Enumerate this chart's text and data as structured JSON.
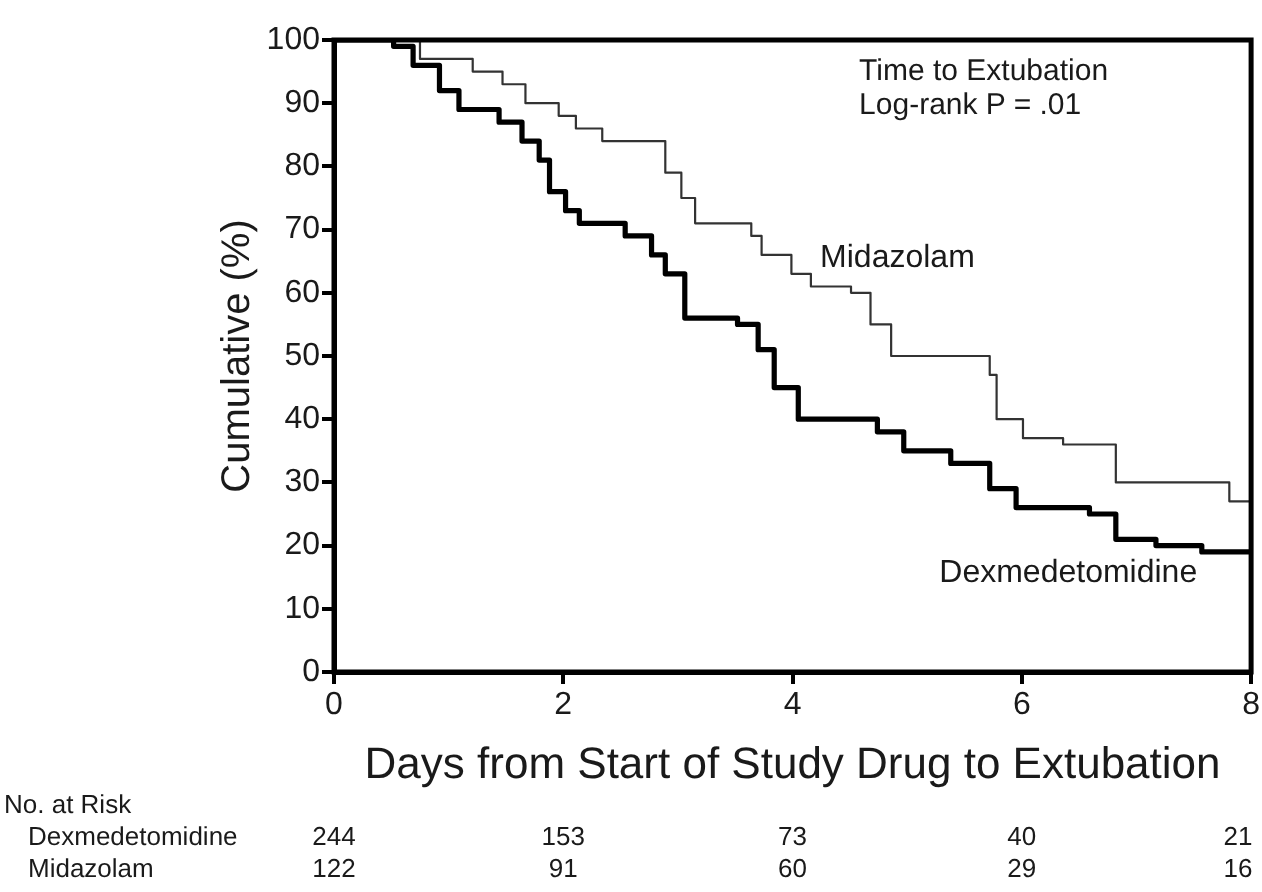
{
  "chart_data": {
    "type": "step",
    "xlabel": "Days from Start of Study Drug to Extubation",
    "ylabel": "Cumulative (%)",
    "xlim": [
      0,
      8
    ],
    "ylim": [
      0,
      100
    ],
    "xticks": [
      0,
      2,
      4,
      6,
      8
    ],
    "yticks": [
      0,
      10,
      20,
      30,
      40,
      50,
      60,
      70,
      80,
      90,
      100
    ],
    "grid": false,
    "legend": false,
    "series": [
      {
        "name": "Dexmedetomidine",
        "color": "#000000",
        "x": [
          0,
          0.52,
          0.69,
          0.92,
          1.09,
          1.44,
          1.64,
          1.79,
          1.88,
          2.02,
          2.14,
          2.54,
          2.77,
          2.89,
          3.06,
          3.52,
          3.7,
          3.84,
          4.05,
          4.74,
          4.97,
          5.38,
          5.72,
          5.95,
          6.59,
          6.82,
          7.17,
          7.57,
          8
        ],
        "values": [
          100,
          99,
          96,
          92,
          89,
          87,
          84,
          81,
          76,
          73,
          71,
          69,
          66,
          63,
          56,
          55,
          51,
          45,
          40,
          38,
          35,
          33,
          29,
          26,
          25,
          21,
          20,
          19,
          19
        ]
      },
      {
        "name": "Midazolam",
        "color": "#333333",
        "x": [
          0,
          0.75,
          1.21,
          1.47,
          1.67,
          1.96,
          2.11,
          2.34,
          2.74,
          2.89,
          3.03,
          3.15,
          3.64,
          3.73,
          3.99,
          4.16,
          4.51,
          4.68,
          4.86,
          5.72,
          5.78,
          6.01,
          6.36,
          6.82,
          7.81,
          8
        ],
        "values": [
          100,
          97,
          95,
          93,
          90,
          88,
          86,
          84,
          84,
          79,
          75,
          71,
          69,
          66,
          63,
          61,
          60,
          55,
          50,
          47,
          40,
          37,
          36,
          30,
          27,
          27
        ]
      }
    ],
    "annotations": [
      "Time to Extubation",
      "Log-rank P = .01",
      "No. at Risk",
      "244",
      "153",
      "73",
      "40",
      "21",
      "122",
      "91",
      "60",
      "29",
      "16"
    ]
  }
}
